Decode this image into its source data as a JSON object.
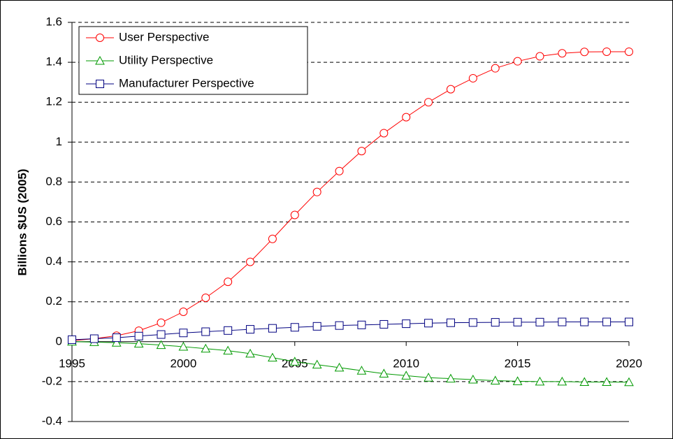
{
  "chart_data": {
    "type": "line",
    "y_label": "Billions $US (2005)",
    "x": [
      1995,
      1996,
      1997,
      1998,
      1999,
      2000,
      2001,
      2002,
      2003,
      2004,
      2005,
      2006,
      2007,
      2008,
      2009,
      2010,
      2011,
      2012,
      2013,
      2014,
      2015,
      2016,
      2017,
      2018,
      2019,
      2020
    ],
    "xlim": [
      1995,
      2020
    ],
    "xticks": [
      1995,
      2000,
      2005,
      2010,
      2015,
      2020
    ],
    "ylim": [
      -0.4,
      1.6
    ],
    "yticks": [
      1.6,
      1.4,
      1.2,
      1,
      0.8,
      0.6,
      0.4,
      0.2,
      0,
      -0.2,
      -0.4
    ],
    "grid": true,
    "legend": "top-left",
    "series": [
      {
        "name": "User Perspective",
        "color": "#ff0000",
        "marker": "circle",
        "values": [
          0.005,
          0.015,
          0.03,
          0.055,
          0.095,
          0.15,
          0.22,
          0.3,
          0.4,
          0.515,
          0.635,
          0.75,
          0.855,
          0.955,
          1.045,
          1.125,
          1.2,
          1.265,
          1.32,
          1.37,
          1.405,
          1.43,
          1.445,
          1.452,
          1.453,
          1.453
        ]
      },
      {
        "name": "Utility Perspective",
        "color": "#009900",
        "marker": "triangle",
        "values": [
          0,
          -0.002,
          -0.005,
          -0.01,
          -0.017,
          -0.025,
          -0.035,
          -0.045,
          -0.06,
          -0.08,
          -0.1,
          -0.115,
          -0.13,
          -0.145,
          -0.16,
          -0.17,
          -0.18,
          -0.185,
          -0.19,
          -0.195,
          -0.198,
          -0.2,
          -0.2,
          -0.202,
          -0.202,
          -0.203
        ]
      },
      {
        "name": "Manufacturer Perspective",
        "color": "#000080",
        "marker": "square",
        "values": [
          0.01,
          0.015,
          0.02,
          0.028,
          0.036,
          0.044,
          0.05,
          0.056,
          0.062,
          0.067,
          0.072,
          0.077,
          0.081,
          0.084,
          0.087,
          0.09,
          0.093,
          0.095,
          0.096,
          0.097,
          0.098,
          0.098,
          0.099,
          0.099,
          0.099,
          0.099
        ]
      }
    ]
  }
}
